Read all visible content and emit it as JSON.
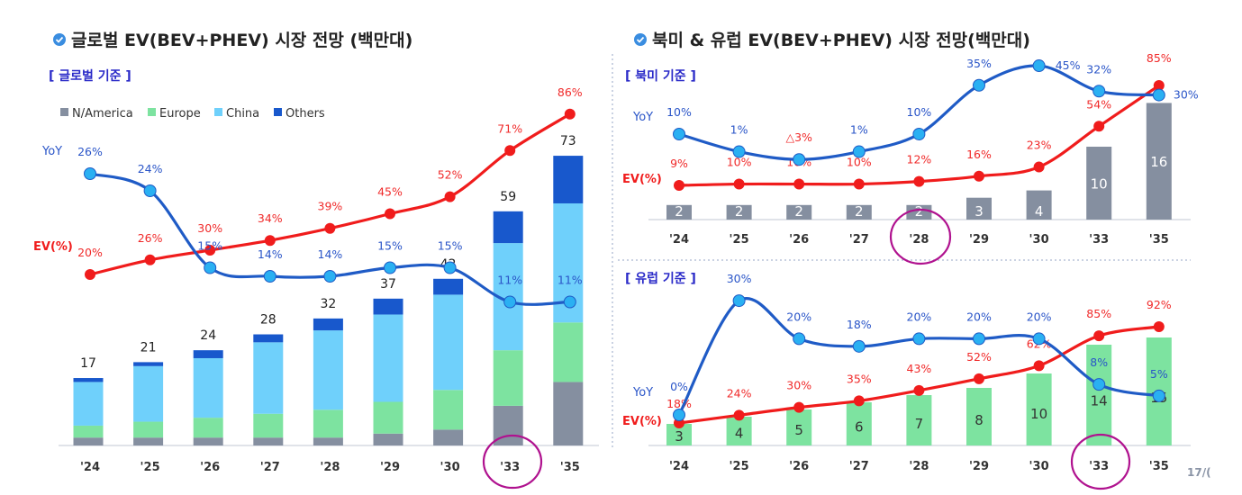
{
  "left_panel": {
    "title": "글로벌 EV(BEV+PHEV) 시장 전망 (백만대)",
    "subtitle": "[ 글로벌 기준 ]",
    "icon": "check-circle-icon"
  },
  "right_panel": {
    "title": "북미 & 유럽 EV(BEV+PHEV) 시장 전망(백만대)",
    "icon": "check-circle-icon"
  },
  "page_number": "17/(",
  "colors": {
    "n_america": "#858fa0",
    "europe": "#7de3a0",
    "china": "#6fd0fb",
    "others": "#1858cc",
    "yoy_line": "#1f5bc6",
    "yoy_marker": "#2ab0f2",
    "ev_line": "#f01c1c",
    "highlight_circle": "#b0128f"
  },
  "chart_data": [
    {
      "type": "bar+line",
      "subtitle": "[ 글로벌 기준 ]",
      "categories": [
        "'24",
        "'25",
        "'26",
        "'27",
        "'28",
        "'29",
        "'30",
        "'33",
        "'35"
      ],
      "legend": [
        "N/America",
        "Europe",
        "China",
        "Others"
      ],
      "legend_placement": "top-left",
      "stacked_series": [
        {
          "name": "N/America",
          "values": [
            2,
            2,
            2,
            2,
            2,
            3,
            4,
            10,
            16
          ]
        },
        {
          "name": "Europe",
          "values": [
            3,
            4,
            5,
            6,
            7,
            8,
            10,
            14,
            15
          ]
        },
        {
          "name": "China",
          "values": [
            11,
            14,
            15,
            18,
            20,
            22,
            24,
            27,
            30
          ]
        },
        {
          "name": "Others",
          "values": [
            1,
            1,
            2,
            2,
            3,
            4,
            4,
            8,
            12
          ]
        }
      ],
      "totals": [
        17,
        21,
        24,
        28,
        32,
        37,
        42,
        59,
        73
      ],
      "line_series": [
        {
          "name": "YoY",
          "values": [
            26,
            24,
            15,
            14,
            14,
            15,
            15,
            11,
            11
          ],
          "labels": [
            "26%",
            "24%",
            "15%",
            "14%",
            "14%",
            "15%",
            "15%",
            "11%",
            "11%"
          ]
        },
        {
          "name": "EV(%)",
          "values": [
            20,
            26,
            30,
            34,
            39,
            45,
            52,
            71,
            86
          ],
          "labels": [
            "20%",
            "26%",
            "30%",
            "34%",
            "39%",
            "45%",
            "52%",
            "71%",
            "86%"
          ]
        }
      ],
      "highlighted_category": "'33"
    },
    {
      "type": "bar+line",
      "subtitle": "[ 북미 기준 ]",
      "categories": [
        "'24",
        "'25",
        "'26",
        "'27",
        "'28",
        "'29",
        "'30",
        "'33",
        "'35"
      ],
      "bar_series": {
        "values": [
          2,
          2,
          2,
          2,
          2,
          3,
          4,
          10,
          16
        ]
      },
      "line_series": [
        {
          "name": "YoY",
          "values": [
            10,
            1,
            -3,
            1,
            10,
            35,
            45,
            32,
            30
          ],
          "labels": [
            "10%",
            "1%",
            "△3%",
            "1%",
            "10%",
            "35%",
            "45%",
            "32%",
            "30%"
          ]
        },
        {
          "name": "EV(%)",
          "values": [
            9,
            10,
            10,
            10,
            12,
            16,
            23,
            54,
            85
          ],
          "labels": [
            "9%",
            "10%",
            "10%",
            "10%",
            "12%",
            "16%",
            "23%",
            "54%",
            "85%"
          ]
        }
      ],
      "highlighted_category": "'28"
    },
    {
      "type": "bar+line",
      "subtitle": "[ 유럽 기준 ]",
      "categories": [
        "'24",
        "'25",
        "'26",
        "'27",
        "'28",
        "'29",
        "'30",
        "'33",
        "'35"
      ],
      "bar_series": {
        "values": [
          3,
          4,
          5,
          6,
          7,
          8,
          10,
          14,
          15
        ]
      },
      "line_series": [
        {
          "name": "YoY",
          "values": [
            0,
            30,
            20,
            18,
            20,
            20,
            20,
            8,
            5
          ],
          "labels": [
            "0%",
            "30%",
            "20%",
            "18%",
            "20%",
            "20%",
            "20%",
            "8%",
            "5%"
          ]
        },
        {
          "name": "EV(%)",
          "values": [
            18,
            24,
            30,
            35,
            43,
            52,
            62,
            85,
            92
          ],
          "labels": [
            "18%",
            "24%",
            "30%",
            "35%",
            "43%",
            "52%",
            "62%",
            "85%",
            "92%"
          ]
        }
      ],
      "highlighted_category": "'33"
    }
  ]
}
